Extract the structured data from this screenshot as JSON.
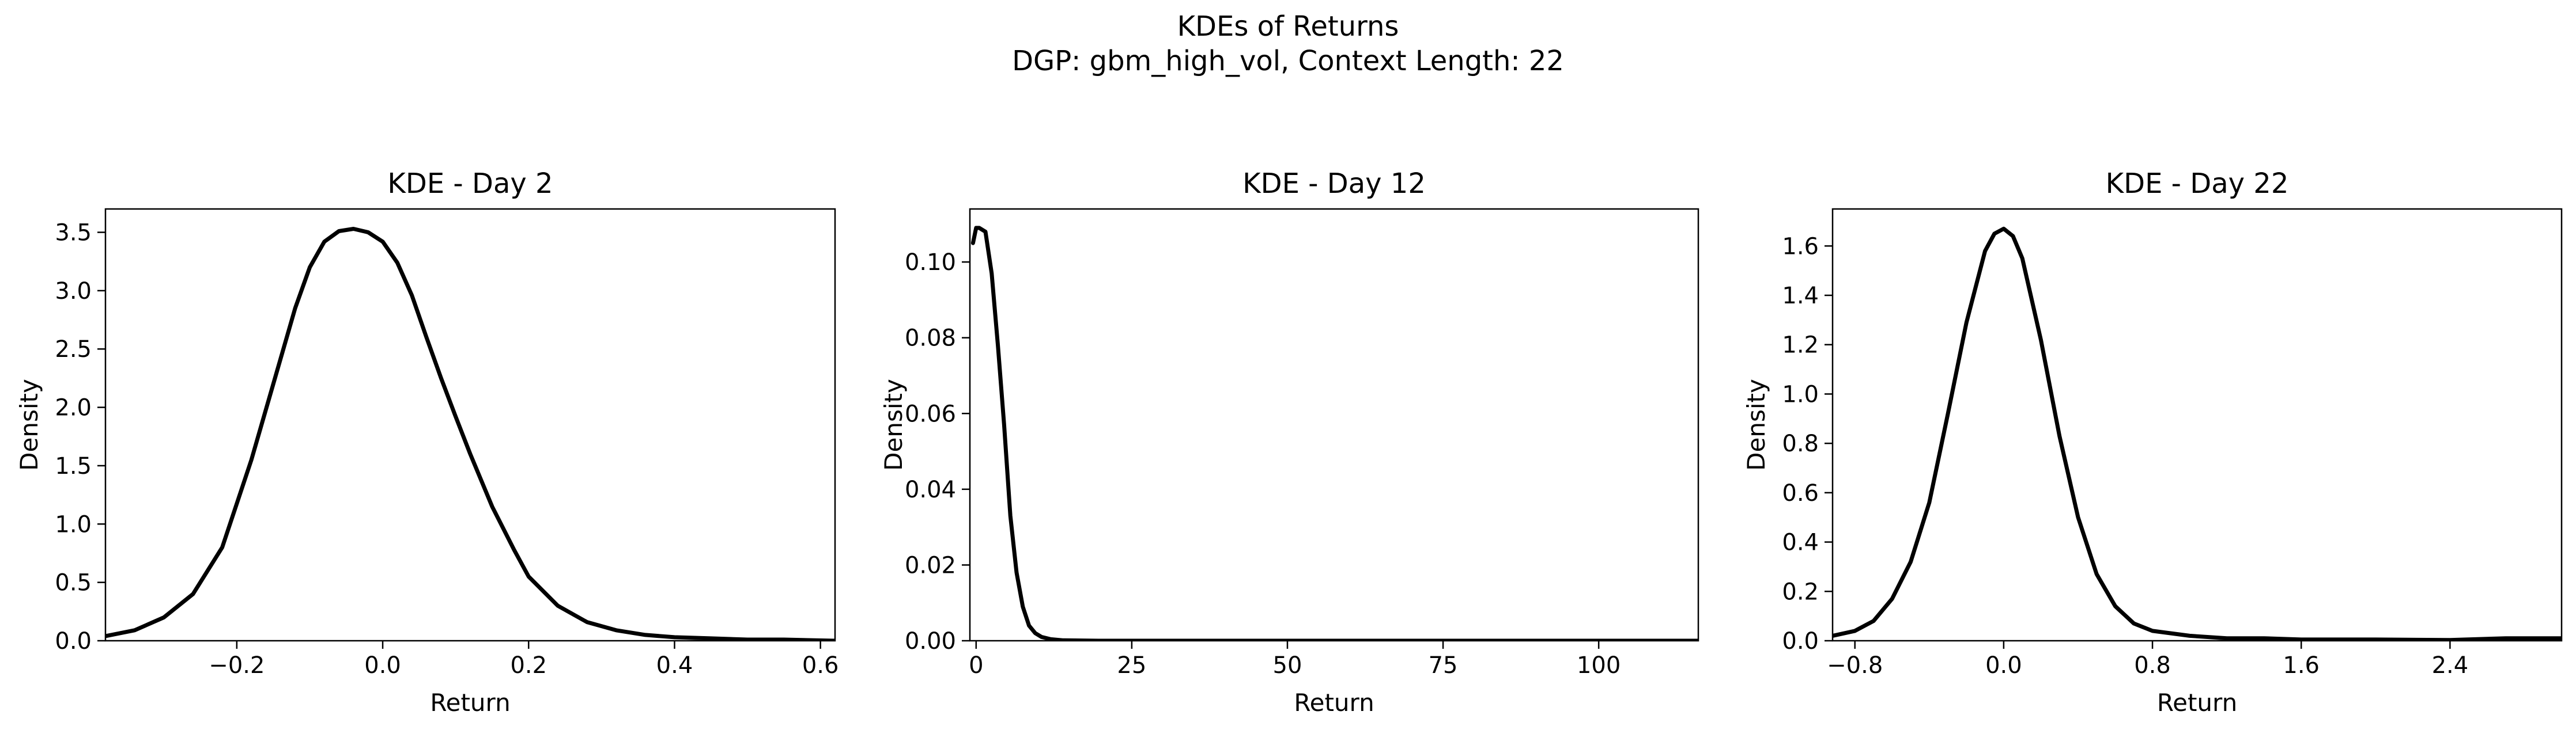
{
  "figure": {
    "title": "KDEs of Returns",
    "subtitle": "DGP: gbm_high_vol, Context Length: 22"
  },
  "chart_data": [
    {
      "type": "line",
      "title": "KDE - Day 2",
      "xlabel": "Return",
      "ylabel": "Density",
      "xlim": [
        -0.38,
        0.62
      ],
      "ylim": [
        0,
        3.7
      ],
      "xticks": [
        -0.2,
        0.0,
        0.2,
        0.4,
        0.6
      ],
      "xtick_labels": [
        "−0.2",
        "0.0",
        "0.2",
        "0.4",
        "0.6"
      ],
      "yticks": [
        0,
        0.5,
        1.0,
        1.5,
        2.0,
        2.5,
        3.0,
        3.5
      ],
      "ytick_labels": [
        "0.0",
        "0.5",
        "1.0",
        "1.5",
        "2.0",
        "2.5",
        "3.0",
        "3.5"
      ],
      "grid": false,
      "line_color": "#000000",
      "series": [
        {
          "x": [
            -0.38,
            -0.34,
            -0.3,
            -0.26,
            -0.22,
            -0.18,
            -0.15,
            -0.12,
            -0.1,
            -0.08,
            -0.06,
            -0.04,
            -0.02,
            0.0,
            0.02,
            0.04,
            0.06,
            0.08,
            0.1,
            0.12,
            0.15,
            0.18,
            0.2,
            0.24,
            0.28,
            0.32,
            0.36,
            0.4,
            0.45,
            0.5,
            0.55,
            0.62
          ],
          "y": [
            0.04,
            0.09,
            0.2,
            0.4,
            0.8,
            1.55,
            2.2,
            2.85,
            3.2,
            3.42,
            3.51,
            3.53,
            3.5,
            3.42,
            3.24,
            2.96,
            2.6,
            2.25,
            1.92,
            1.6,
            1.15,
            0.78,
            0.55,
            0.3,
            0.16,
            0.09,
            0.05,
            0.03,
            0.02,
            0.01,
            0.01,
            0.0
          ]
        }
      ]
    },
    {
      "type": "line",
      "title": "KDE - Day 12",
      "xlabel": "Return",
      "ylabel": "Density",
      "xlim": [
        -1,
        116
      ],
      "ylim": [
        0,
        0.114
      ],
      "xticks": [
        0,
        25,
        50,
        75,
        100
      ],
      "xtick_labels": [
        "0",
        "25",
        "50",
        "75",
        "100"
      ],
      "yticks": [
        0,
        0.02,
        0.04,
        0.06,
        0.08,
        0.1
      ],
      "ytick_labels": [
        "0.00",
        "0.02",
        "0.04",
        "0.06",
        "0.08",
        "0.10"
      ],
      "grid": false,
      "line_color": "#000000",
      "series": [
        {
          "x": [
            -0.5,
            0,
            0.5,
            1.5,
            2.5,
            3.5,
            4.5,
            5.5,
            6.5,
            7.5,
            8.5,
            9.5,
            10.5,
            12,
            14,
            20,
            40,
            60,
            80,
            100,
            116
          ],
          "y": [
            0.105,
            0.109,
            0.109,
            0.108,
            0.097,
            0.078,
            0.057,
            0.033,
            0.018,
            0.009,
            0.004,
            0.002,
            0.001,
            0.0004,
            0.0001,
            0.0,
            0.0,
            0.0,
            0.0,
            0.0,
            0.0
          ]
        }
      ]
    },
    {
      "type": "line",
      "title": "KDE - Day 22",
      "xlabel": "Return",
      "ylabel": "Density",
      "xlim": [
        -0.92,
        3.0
      ],
      "ylim": [
        0,
        1.75
      ],
      "xticks": [
        -0.8,
        0.0,
        0.8,
        1.6,
        2.4
      ],
      "xtick_labels": [
        "−0.8",
        "0.0",
        "0.8",
        "1.6",
        "2.4"
      ],
      "yticks": [
        0,
        0.2,
        0.4,
        0.6,
        0.8,
        1.0,
        1.2,
        1.4,
        1.6
      ],
      "ytick_labels": [
        "0.0",
        "0.2",
        "0.4",
        "0.6",
        "0.8",
        "1.0",
        "1.2",
        "1.4",
        "1.6"
      ],
      "grid": false,
      "line_color": "#000000",
      "series": [
        {
          "x": [
            -0.92,
            -0.8,
            -0.7,
            -0.6,
            -0.5,
            -0.4,
            -0.3,
            -0.2,
            -0.1,
            -0.05,
            0.0,
            0.05,
            0.1,
            0.2,
            0.3,
            0.4,
            0.5,
            0.6,
            0.7,
            0.8,
            1.0,
            1.2,
            1.4,
            1.6,
            2.0,
            2.4,
            2.7,
            3.0
          ],
          "y": [
            0.02,
            0.04,
            0.08,
            0.17,
            0.32,
            0.56,
            0.92,
            1.29,
            1.58,
            1.65,
            1.67,
            1.64,
            1.55,
            1.22,
            0.83,
            0.5,
            0.27,
            0.14,
            0.07,
            0.04,
            0.02,
            0.01,
            0.01,
            0.005,
            0.005,
            0.003,
            0.01,
            0.01
          ]
        }
      ]
    }
  ]
}
